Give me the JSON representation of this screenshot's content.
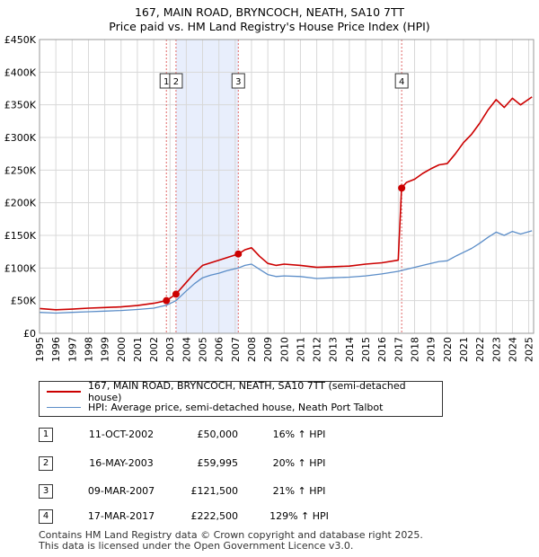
{
  "title": {
    "line1": "167, MAIN ROAD, BRYNCOCH, NEATH, SA10 7TT",
    "line2": "Price paid vs. HM Land Registry's House Price Index (HPI)"
  },
  "colors": {
    "property": "#cc0000",
    "hpi": "#5b8dc8",
    "shade": "#e8eefc",
    "grid": "#d8d8d8",
    "vline": "#e06666"
  },
  "chart_data": {
    "type": "line",
    "title": "167, MAIN ROAD, BRYNCOCH, NEATH, SA10 7TT",
    "subtitle": "Price paid vs. HM Land Registry's House Price Index (HPI)",
    "xlim": [
      1995,
      2025.3
    ],
    "ylim": [
      0,
      450000
    ],
    "yticks": [
      0,
      50000,
      100000,
      150000,
      200000,
      250000,
      300000,
      350000,
      400000,
      450000
    ],
    "ytick_labels": [
      "£0",
      "£50K",
      "£100K",
      "£150K",
      "£200K",
      "£250K",
      "£300K",
      "£350K",
      "£400K",
      "£450K"
    ],
    "xticks": [
      "1995",
      "1996",
      "1997",
      "1998",
      "1999",
      "2000",
      "2001",
      "2002",
      "2003",
      "2004",
      "2005",
      "2006",
      "2007",
      "2008",
      "2009",
      "2010",
      "2011",
      "2012",
      "2013",
      "2014",
      "2015",
      "2016",
      "2017",
      "2018",
      "2019",
      "2020",
      "2021",
      "2022",
      "2023",
      "2024",
      "2025"
    ],
    "shaded_span": [
      2003.37,
      2007.19
    ],
    "series": [
      {
        "name": "167, MAIN ROAD, BRYNCOCH, NEATH, SA10 7TT (semi-detached house)",
        "x": [
          1995,
          1996,
          1997,
          1998,
          1999,
          2000,
          2001,
          2002,
          2002.78,
          2003.37,
          2004,
          2004.5,
          2005,
          2005.5,
          2006,
          2006.5,
          2007.19,
          2007.6,
          2008,
          2008.5,
          2009,
          2009.5,
          2010,
          2011,
          2012,
          2013,
          2014,
          2015,
          2016,
          2017.0,
          2017.2,
          2017.5,
          2018,
          2018.5,
          2019,
          2019.5,
          2020,
          2020.5,
          2021,
          2021.5,
          2022,
          2022.5,
          2023,
          2023.5,
          2024,
          2024.5,
          2025.2
        ],
        "values": [
          38000,
          36000,
          37000,
          38500,
          39500,
          40500,
          42500,
          46000,
          50000,
          59995,
          78000,
          92000,
          104000,
          108000,
          112000,
          116000,
          121500,
          128000,
          131000,
          118000,
          107000,
          104000,
          106000,
          104000,
          101000,
          102000,
          103000,
          106000,
          108000,
          112000,
          222500,
          231000,
          236000,
          245000,
          252000,
          258000,
          260000,
          275000,
          292000,
          305000,
          322000,
          342000,
          358000,
          346000,
          360000,
          350000,
          362000
        ]
      },
      {
        "name": "HPI: Average price, semi-detached house, Neath Port Talbot",
        "x": [
          1995,
          1996,
          1997,
          1998,
          1999,
          2000,
          2001,
          2002,
          2002.78,
          2003.37,
          2004,
          2004.5,
          2005,
          2005.5,
          2006,
          2006.5,
          2007.19,
          2007.6,
          2008,
          2008.5,
          2009,
          2009.5,
          2010,
          2011,
          2012,
          2013,
          2014,
          2015,
          2016,
          2017.0,
          2017.5,
          2018,
          2018.5,
          2019,
          2019.5,
          2020,
          2020.5,
          2021,
          2021.5,
          2022,
          2022.5,
          2023,
          2023.5,
          2024,
          2024.5,
          2025.2
        ],
        "values": [
          32000,
          31000,
          32000,
          33000,
          34000,
          35000,
          36500,
          38500,
          43000,
          50000,
          65000,
          76000,
          85000,
          89000,
          92000,
          96000,
          100000,
          104000,
          106000,
          98000,
          90000,
          87000,
          88000,
          87000,
          84000,
          85000,
          86000,
          88000,
          91000,
          95000,
          98000,
          101000,
          104000,
          107000,
          110000,
          111000,
          118000,
          124000,
          130000,
          138000,
          147000,
          155000,
          150000,
          156000,
          152000,
          157000
        ]
      }
    ],
    "sales": [
      {
        "label": "1",
        "x": 2002.78,
        "y": 50000
      },
      {
        "label": "2",
        "x": 2003.37,
        "y": 59995
      },
      {
        "label": "3",
        "x": 2007.19,
        "y": 121500
      },
      {
        "label": "4",
        "x": 2017.21,
        "y": 222500
      }
    ]
  },
  "legend": {
    "property": "167, MAIN ROAD, BRYNCOCH, NEATH, SA10 7TT (semi-detached house)",
    "hpi": "HPI: Average price, semi-detached house, Neath Port Talbot"
  },
  "transactions": [
    {
      "num": "1",
      "date": "11-OCT-2002",
      "price": "£50,000",
      "hpi": "16% ↑ HPI"
    },
    {
      "num": "2",
      "date": "16-MAY-2003",
      "price": "£59,995",
      "hpi": "20% ↑ HPI"
    },
    {
      "num": "3",
      "date": "09-MAR-2007",
      "price": "£121,500",
      "hpi": "21% ↑ HPI"
    },
    {
      "num": "4",
      "date": "17-MAR-2017",
      "price": "£222,500",
      "hpi": "129% ↑ HPI"
    }
  ],
  "footer": {
    "line1": "Contains HM Land Registry data © Crown copyright and database right 2025.",
    "line2": "This data is licensed under the Open Government Licence v3.0."
  }
}
